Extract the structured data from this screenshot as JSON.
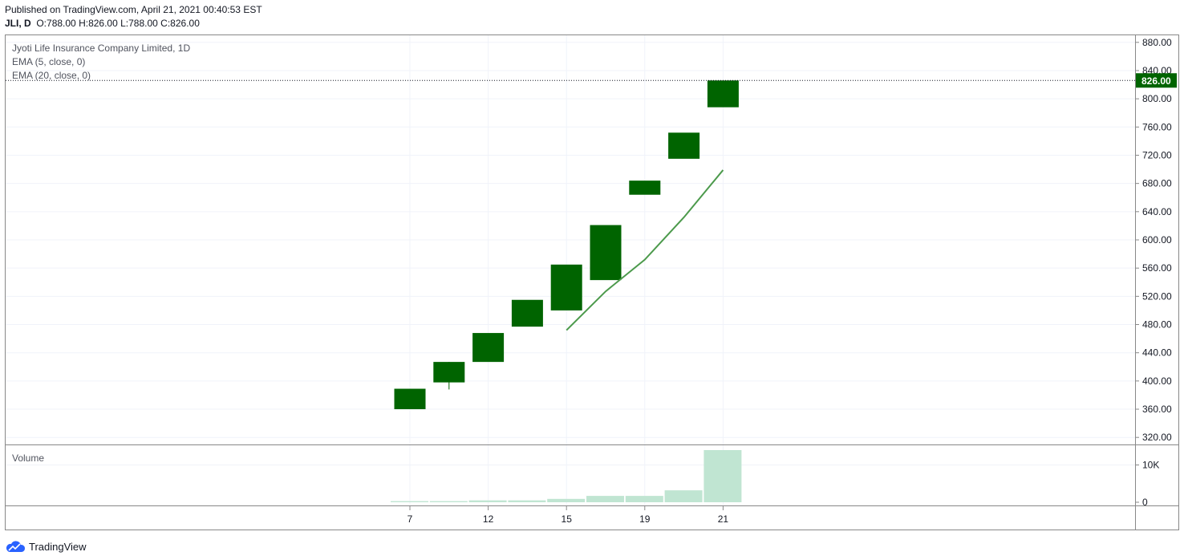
{
  "header": {
    "published": "Published on TradingView.com, April 21, 2021 00:40:53 EST",
    "symbol": "JLI, D",
    "o_label": "O:",
    "o_value": "788.00",
    "h_label": "H:",
    "h_value": "826.00",
    "l_label": "L:",
    "l_value": "788.00",
    "c_label": "C:",
    "c_value": "826.00"
  },
  "legend": {
    "title": "Jyoti Life Insurance Company Limited, 1D",
    "ema5": "EMA (5, close, 0)",
    "ema20": "EMA (20, close, 0)",
    "volume": "Volume"
  },
  "footer": {
    "brand": "TradingView"
  },
  "colors": {
    "candle_up": "#006400",
    "ema": "#4c9a4c",
    "volume": "#c0e5d2",
    "price_tag": "#006400",
    "grid": "#f0f3fa"
  },
  "chart_data": {
    "type": "candlestick",
    "price_axis": {
      "ticks": [
        "880.00",
        "840.00",
        "800.00",
        "760.00",
        "720.00",
        "680.00",
        "640.00",
        "600.00",
        "560.00",
        "520.00",
        "480.00",
        "440.00",
        "400.00",
        "360.00",
        "320.00"
      ],
      "range": [
        310,
        890
      ]
    },
    "last_price": "826.00",
    "x_ticks": [
      "7",
      "12",
      "15",
      "19",
      "21"
    ],
    "candles": [
      {
        "o": 360,
        "h": 389,
        "l": 360,
        "c": 389
      },
      {
        "o": 398,
        "h": 427,
        "l": 388,
        "c": 427
      },
      {
        "o": 427,
        "h": 468,
        "l": 427,
        "c": 468
      },
      {
        "o": 477,
        "h": 515,
        "l": 477,
        "c": 515
      },
      {
        "o": 500,
        "h": 565,
        "l": 500,
        "c": 565
      },
      {
        "o": 543,
        "h": 621,
        "l": 543,
        "c": 621
      },
      {
        "o": 664,
        "h": 684,
        "l": 664,
        "c": 684
      },
      {
        "o": 715,
        "h": 752,
        "l": 715,
        "c": 752
      },
      {
        "o": 788,
        "h": 826,
        "l": 788,
        "c": 826
      }
    ],
    "ema5": [
      null,
      null,
      null,
      null,
      472,
      527,
      572,
      632,
      699
    ],
    "volume_axis": {
      "ticks": [
        "10K",
        "0"
      ],
      "range": [
        0,
        14000
      ]
    },
    "volume": [
      300,
      300,
      500,
      500,
      900,
      1700,
      1700,
      3200,
      14000
    ]
  }
}
